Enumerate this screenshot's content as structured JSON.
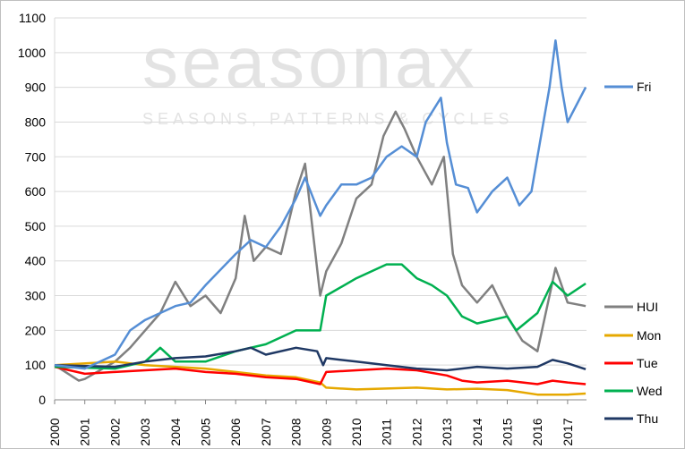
{
  "chart_data": {
    "type": "line",
    "title": "",
    "xlabel": "",
    "ylabel": "",
    "xlim": [
      2000,
      2017.6
    ],
    "ylim": [
      0,
      1100
    ],
    "yticks": [
      0,
      100,
      200,
      300,
      400,
      500,
      600,
      700,
      800,
      900,
      1000,
      1100
    ],
    "xticks": [
      2000,
      2001,
      2002,
      2003,
      2004,
      2005,
      2006,
      2007,
      2008,
      2009,
      2010,
      2011,
      2012,
      2013,
      2014,
      2015,
      2016,
      2017
    ],
    "grid": "horizontal",
    "legend_placement": "right",
    "watermark": {
      "logo": "seasonax",
      "tagline": "SEASONS, PATTERNS & CYCLES"
    },
    "series": [
      {
        "name": "HUI",
        "color": "#808080",
        "x": [
          2000,
          2000.8,
          2001,
          2002,
          2002.5,
          2003,
          2003.5,
          2004,
          2004.5,
          2005,
          2005.5,
          2006,
          2006.3,
          2006.6,
          2007,
          2007.5,
          2008,
          2008.3,
          2008.8,
          2009,
          2009.5,
          2010,
          2010.5,
          2010.9,
          2011.3,
          2011.6,
          2012,
          2012.5,
          2012.9,
          2013.2,
          2013.5,
          2014,
          2014.5,
          2015,
          2015.5,
          2016,
          2016.4,
          2016.6,
          2017,
          2017.6
        ],
        "y": [
          100,
          55,
          60,
          110,
          150,
          200,
          250,
          340,
          270,
          300,
          250,
          350,
          530,
          400,
          440,
          420,
          600,
          680,
          300,
          370,
          450,
          580,
          620,
          760,
          830,
          780,
          700,
          620,
          700,
          420,
          330,
          280,
          330,
          240,
          170,
          140,
          300,
          380,
          280,
          270
        ]
      },
      {
        "name": "Mon",
        "color": "#e6a800",
        "x": [
          2000,
          2002,
          2003,
          2004,
          2005,
          2006,
          2007,
          2008,
          2008.8,
          2009,
          2010,
          2012,
          2013,
          2014,
          2015,
          2016,
          2017,
          2017.6
        ],
        "y": [
          100,
          110,
          100,
          95,
          90,
          80,
          70,
          65,
          50,
          35,
          30,
          35,
          30,
          32,
          28,
          15,
          15,
          18
        ]
      },
      {
        "name": "Tue",
        "color": "#ff0000",
        "x": [
          2000,
          2001,
          2002,
          2003,
          2004,
          2005,
          2006,
          2007,
          2008,
          2008.8,
          2009,
          2010,
          2011,
          2012,
          2013,
          2013.5,
          2014,
          2015,
          2016,
          2016.5,
          2017,
          2017.6
        ],
        "y": [
          95,
          75,
          80,
          85,
          90,
          80,
          75,
          65,
          60,
          45,
          80,
          85,
          90,
          85,
          70,
          55,
          50,
          55,
          45,
          55,
          50,
          45
        ]
      },
      {
        "name": "Wed",
        "color": "#00b050",
        "x": [
          2000,
          2002,
          2003,
          2003.5,
          2004,
          2005,
          2006,
          2007,
          2008,
          2008.8,
          2009,
          2010,
          2011,
          2011.5,
          2012,
          2012.5,
          2013,
          2013.5,
          2014,
          2015,
          2015.3,
          2016,
          2016.5,
          2017,
          2017.6
        ],
        "y": [
          95,
          90,
          110,
          150,
          110,
          110,
          140,
          160,
          200,
          200,
          300,
          350,
          390,
          390,
          350,
          330,
          300,
          240,
          220,
          240,
          200,
          250,
          340,
          300,
          335
        ]
      },
      {
        "name": "Thu",
        "color": "#1f3864",
        "x": [
          2000,
          2002,
          2003,
          2004,
          2005,
          2006,
          2006.5,
          2007,
          2008,
          2008.7,
          2008.9,
          2009,
          2010,
          2011,
          2012,
          2013,
          2014,
          2015,
          2016,
          2016.5,
          2017,
          2017.6
        ],
        "y": [
          100,
          95,
          110,
          120,
          125,
          140,
          150,
          130,
          150,
          140,
          100,
          120,
          110,
          100,
          90,
          85,
          95,
          90,
          95,
          115,
          105,
          88
        ]
      },
      {
        "name": "Fri",
        "color": "#558ed5",
        "x": [
          2000,
          2001,
          2002,
          2002.5,
          2003,
          2004,
          2004.5,
          2005,
          2006,
          2006.5,
          2007,
          2007.5,
          2008,
          2008.3,
          2008.8,
          2009,
          2009.5,
          2010,
          2010.5,
          2011,
          2011.5,
          2012,
          2012.3,
          2012.8,
          2013,
          2013.3,
          2013.7,
          2014,
          2014.5,
          2015,
          2015.4,
          2015.8,
          2016,
          2016.4,
          2016.6,
          2016.8,
          2017,
          2017.3,
          2017.6
        ],
        "y": [
          100,
          90,
          130,
          200,
          230,
          270,
          280,
          330,
          420,
          460,
          440,
          500,
          580,
          640,
          530,
          560,
          620,
          620,
          640,
          700,
          730,
          700,
          800,
          870,
          740,
          620,
          610,
          540,
          600,
          640,
          560,
          600,
          700,
          900,
          1035,
          900,
          800,
          850,
          900
        ]
      }
    ],
    "legend": [
      "Fri",
      "HUI",
      "Mon",
      "Tue",
      "Wed",
      "Thu"
    ]
  }
}
